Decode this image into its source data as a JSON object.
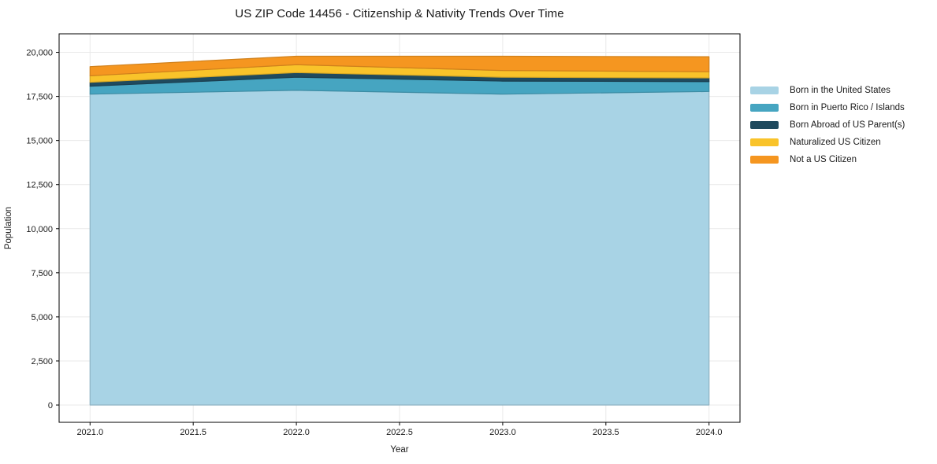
{
  "chart_data": {
    "type": "area",
    "stacked": true,
    "title": "US ZIP Code 14456 - Citizenship & Nativity Trends Over Time",
    "xlabel": "Year",
    "ylabel": "Population",
    "x": [
      2021,
      2022,
      2023,
      2024
    ],
    "series": [
      {
        "name": "Born in the United States",
        "color": "#a8d3e5",
        "values": [
          17630,
          17850,
          17630,
          17780
        ]
      },
      {
        "name": "Born in Puerto Rico / Islands",
        "color": "#46a5c1",
        "values": [
          450,
          740,
          740,
          560
        ]
      },
      {
        "name": "Born Abroad of US Parent(s)",
        "color": "#1f4a5e",
        "values": [
          220,
          260,
          220,
          210
        ]
      },
      {
        "name": "Naturalized US Citizen",
        "color": "#f9c32a",
        "values": [
          370,
          450,
          380,
          350
        ]
      },
      {
        "name": "Not a US Citizen",
        "color": "#f59620",
        "values": [
          520,
          480,
          810,
          850
        ]
      }
    ],
    "xlim": [
      2020.85,
      2024.15
    ],
    "ylim": [
      -980,
      21050
    ],
    "xticks": [
      2021.0,
      2021.5,
      2022.0,
      2022.5,
      2023.0,
      2023.5,
      2024.0
    ],
    "xtick_labels": [
      "2021.0",
      "2021.5",
      "2022.0",
      "2022.5",
      "2023.0",
      "2023.5",
      "2024.0"
    ],
    "yticks": [
      0,
      2500,
      5000,
      7500,
      10000,
      12500,
      15000,
      17500,
      20000
    ],
    "ytick_labels": [
      "0",
      "2,500",
      "5,000",
      "7,500",
      "10,000",
      "12,500",
      "15,000",
      "17,500",
      "20,000"
    ],
    "grid": true,
    "grid_color": "#e9e9e9",
    "spine_color": "#000000",
    "text_color": "#1a1a1a",
    "legend_position": "right"
  }
}
